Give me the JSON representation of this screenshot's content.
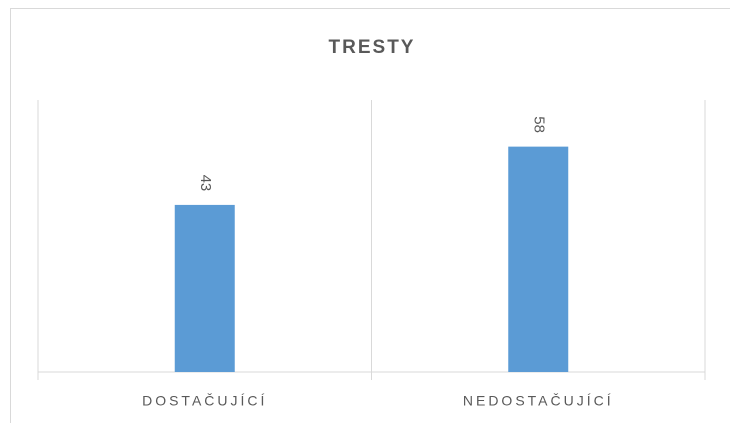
{
  "chart_data": {
    "type": "bar",
    "title": "TRESTY",
    "categories": [
      "DOSTAČUJÍCÍ",
      "NEDOSTAČUJÍCÍ"
    ],
    "values": [
      43,
      58
    ],
    "color": "#5b9bd5",
    "ylim": [
      0,
      70
    ],
    "grid": false
  }
}
